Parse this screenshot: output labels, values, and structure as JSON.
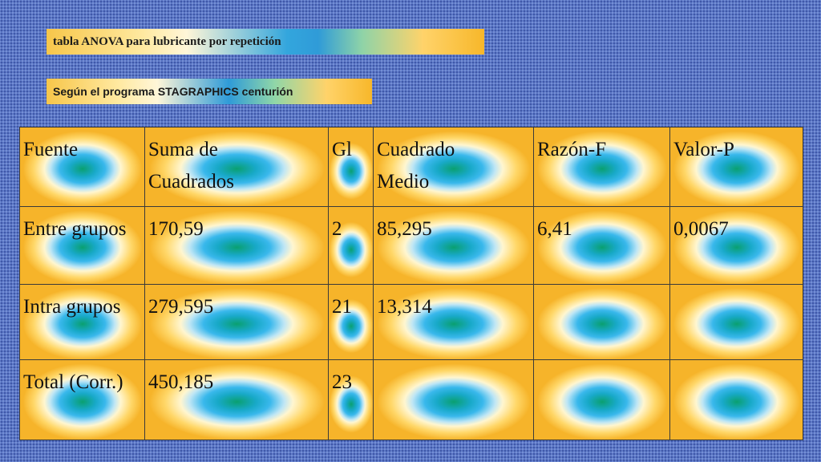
{
  "header": {
    "title": "tabla ANOVA para lubricante por repetición",
    "subtitle_prefix": "Según el programa",
    "subtitle_program": "STAGRAPHICS",
    "subtitle_suffix": "centurión"
  },
  "table": {
    "columns": [
      [
        "Fuente"
      ],
      [
        "Suma de",
        "Cuadrados"
      ],
      [
        "Gl"
      ],
      [
        "Cuadrado",
        "Medio"
      ],
      [
        "Razón-F"
      ],
      [
        "Valor-P"
      ]
    ],
    "rows": [
      [
        "Entre grupos",
        "170,59",
        "2",
        "85,295",
        "6,41",
        "0,0067"
      ],
      [
        "Intra grupos",
        "279,595",
        "21",
        "13,314",
        "",
        ""
      ],
      [
        "Total (Corr.)",
        "450,185",
        "23",
        "",
        "",
        ""
      ]
    ]
  },
  "colors": {
    "slide_background": "#5b78c8",
    "cell_gold": "#f6b42a",
    "cell_blue": "#39b8ec",
    "cell_green": "#0aa070"
  }
}
